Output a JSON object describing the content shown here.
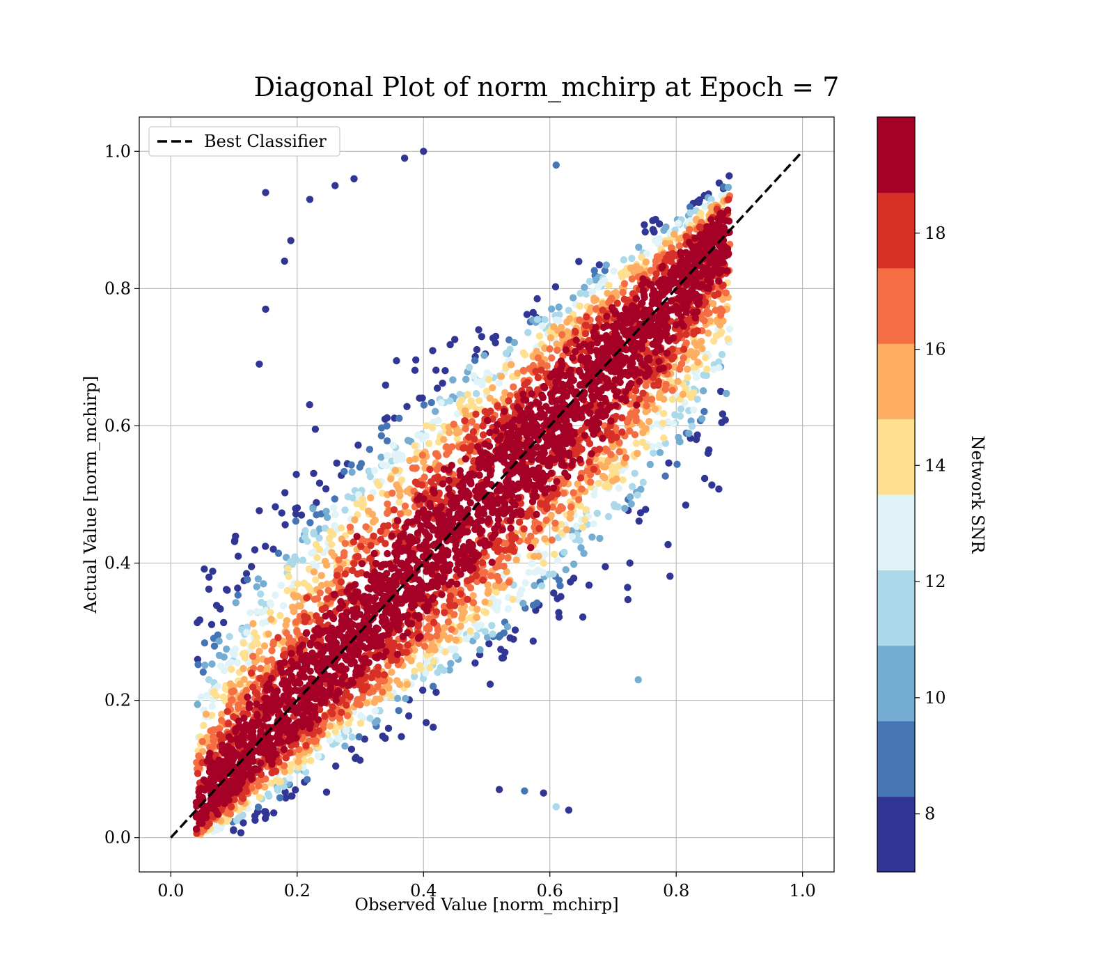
{
  "chart_data": {
    "type": "scatter",
    "title": "Diagonal Plot of norm_mchirp at Epoch = 7",
    "xlabel": "Observed Value [norm_mchirp]",
    "ylabel": "Actual Value [norm_mchirp]",
    "xlim": [
      -0.05,
      1.05
    ],
    "ylim": [
      -0.05,
      1.05
    ],
    "xticks": [
      "0.0",
      "0.2",
      "0.4",
      "0.6",
      "0.8",
      "1.0"
    ],
    "yticks": [
      "0.0",
      "0.2",
      "0.4",
      "0.6",
      "0.8",
      "1.0"
    ],
    "grid": true,
    "legend": {
      "placement": "top-left",
      "entries": [
        "Best Classifier"
      ]
    },
    "reference_line": {
      "name": "Best Classifier",
      "style": "dashed",
      "color": "#000000",
      "x": [
        0,
        1
      ],
      "y": [
        0,
        1
      ]
    },
    "colorbar": {
      "label": "Network SNR",
      "range": [
        7,
        20
      ],
      "ticks": [
        "8",
        "10",
        "12",
        "14",
        "16",
        "18"
      ],
      "colors": [
        "#313695",
        "#4575b4",
        "#74add1",
        "#abd9e9",
        "#e0f3f8",
        "#fee090",
        "#fdae61",
        "#f46d43",
        "#d73027",
        "#a50026"
      ]
    },
    "point_cloud": {
      "description_values": "dense scatter along the diagonal; points near the diagonal have high SNR (dark red), points far from it have low SNR (blue)",
      "x_range": [
        0.04,
        0.88
      ],
      "y_range": [
        0.0,
        1.0
      ],
      "outliers": [
        {
          "x": 0.15,
          "y": 0.94,
          "snr": 7.5
        },
        {
          "x": 0.18,
          "y": 0.84,
          "snr": 7.5
        },
        {
          "x": 0.19,
          "y": 0.87,
          "snr": 7.5
        },
        {
          "x": 0.15,
          "y": 0.77,
          "snr": 7.5
        },
        {
          "x": 0.14,
          "y": 0.69,
          "snr": 7.5
        },
        {
          "x": 0.22,
          "y": 0.93,
          "snr": 7.5
        },
        {
          "x": 0.26,
          "y": 0.95,
          "snr": 7.5
        },
        {
          "x": 0.29,
          "y": 0.96,
          "snr": 7.5
        },
        {
          "x": 0.37,
          "y": 0.99,
          "snr": 7.5
        },
        {
          "x": 0.4,
          "y": 1.0,
          "snr": 7.5
        },
        {
          "x": 0.61,
          "y": 0.98,
          "snr": 8.5
        },
        {
          "x": 0.63,
          "y": 0.04,
          "snr": 7.5
        },
        {
          "x": 0.59,
          "y": 0.065,
          "snr": 7.5
        },
        {
          "x": 0.56,
          "y": 0.068,
          "snr": 8.5
        },
        {
          "x": 0.52,
          "y": 0.07,
          "snr": 7.5
        },
        {
          "x": 0.74,
          "y": 0.23,
          "snr": 10.5
        },
        {
          "x": 0.88,
          "y": 0.77,
          "snr": 15.5
        },
        {
          "x": 0.87,
          "y": 0.83,
          "snr": 18.5
        },
        {
          "x": 0.05,
          "y": 0.14,
          "snr": 16.5
        },
        {
          "x": 0.61,
          "y": 0.045,
          "snr": 11.5
        }
      ]
    }
  }
}
